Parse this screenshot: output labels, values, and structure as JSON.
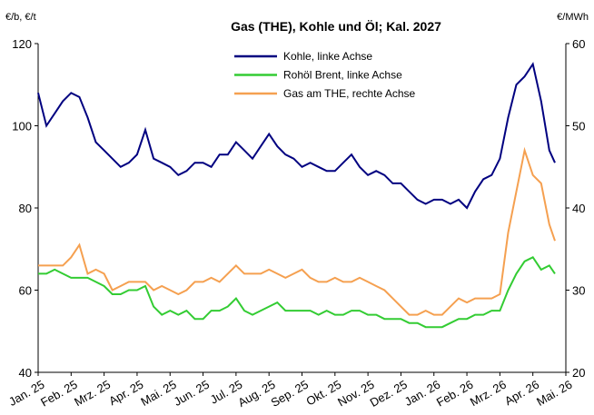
{
  "chart_data": {
    "type": "line",
    "title": "Gas (THE), Kohle und Öl; Kal. 2027",
    "y_label": "€/b, €/t",
    "y2_label": "€/MWh",
    "xlim": [
      0,
      16
    ],
    "xticks": [
      {
        "value": 0,
        "label": "Jan. 25"
      },
      {
        "value": 1,
        "label": "Feb. 25"
      },
      {
        "value": 2,
        "label": "Mrz. 25"
      },
      {
        "value": 3,
        "label": "Apr. 25"
      },
      {
        "value": 4,
        "label": "Mai. 25"
      },
      {
        "value": 5,
        "label": "Jun. 25"
      },
      {
        "value": 6,
        "label": "Jul. 25"
      },
      {
        "value": 7,
        "label": "Aug. 25"
      },
      {
        "value": 8,
        "label": "Sep. 25"
      },
      {
        "value": 9,
        "label": "Okt. 25"
      },
      {
        "value": 10,
        "label": "Nov. 25"
      },
      {
        "value": 11,
        "label": "Dez. 25"
      },
      {
        "value": 12,
        "label": "Jan. 26"
      },
      {
        "value": 13,
        "label": "Feb. 26"
      },
      {
        "value": 14,
        "label": "Mrz. 26"
      },
      {
        "value": 15,
        "label": "Apr. 26"
      },
      {
        "value": 16,
        "label": "Mai. 26"
      }
    ],
    "ylim": [
      40,
      120
    ],
    "yticks": [
      40,
      60,
      80,
      100,
      120
    ],
    "y2lim": [
      20,
      60
    ],
    "y2ticks": [
      20,
      30,
      40,
      50,
      60
    ],
    "grid": false,
    "legend": "top",
    "x": [
      0,
      0.25,
      0.5,
      0.75,
      1,
      1.25,
      1.5,
      1.75,
      2,
      2.25,
      2.5,
      2.75,
      3,
      3.25,
      3.5,
      3.75,
      4,
      4.25,
      4.5,
      4.75,
      5,
      5.25,
      5.5,
      5.75,
      6,
      6.25,
      6.5,
      6.75,
      7,
      7.25,
      7.5,
      7.75,
      8,
      8.25,
      8.5,
      8.75,
      9,
      9.25,
      9.5,
      9.75,
      10,
      10.25,
      10.5,
      10.75,
      11,
      11.25,
      11.5,
      11.75,
      12,
      12.25,
      12.5,
      12.75,
      13,
      13.25,
      13.5,
      13.75,
      14,
      14.25,
      14.5,
      14.75,
      15,
      15.25,
      15.5,
      15.67
    ],
    "series": [
      {
        "name": "Kohle, linke Achse",
        "color": "#000080",
        "axis": "y",
        "values": [
          108,
          100,
          103,
          106,
          108,
          107,
          102,
          96,
          94,
          92,
          90,
          91,
          93,
          99,
          92,
          91,
          90,
          88,
          89,
          91,
          91,
          90,
          93,
          93,
          96,
          94,
          92,
          95,
          98,
          95,
          93,
          92,
          90,
          91,
          90,
          89,
          89,
          91,
          93,
          90,
          88,
          89,
          88,
          86,
          86,
          84,
          82,
          81,
          82,
          82,
          81,
          82,
          80,
          84,
          87,
          88,
          92,
          102,
          110,
          112,
          115,
          106,
          94,
          91
        ]
      },
      {
        "name": "Rohöl Brent, linke Achse",
        "color": "#33cc33",
        "axis": "y",
        "values": [
          64,
          64,
          65,
          64,
          63,
          63,
          63,
          62,
          61,
          59,
          59,
          60,
          60,
          61,
          56,
          54,
          55,
          54,
          55,
          53,
          53,
          55,
          55,
          56,
          58,
          55,
          54,
          55,
          56,
          57,
          55,
          55,
          55,
          55,
          54,
          55,
          54,
          54,
          55,
          55,
          54,
          54,
          53,
          53,
          53,
          52,
          52,
          51,
          51,
          51,
          52,
          53,
          53,
          54,
          54,
          55,
          55,
          60,
          64,
          67,
          68,
          65,
          66,
          64
        ]
      },
      {
        "name": "Gas am THE, rechte Achse",
        "color": "#f5a050",
        "axis": "y2",
        "values": [
          33,
          33,
          33,
          33,
          34,
          35.5,
          32,
          32.5,
          32,
          30,
          30.5,
          31,
          31,
          31,
          30,
          30.5,
          30,
          29.5,
          30,
          31,
          31,
          31.5,
          31,
          32,
          33,
          32,
          32,
          32,
          32.5,
          32,
          31.5,
          32,
          32.5,
          31.5,
          31,
          31,
          31.5,
          31,
          31,
          31.5,
          31,
          30.5,
          30,
          29,
          28,
          27,
          27,
          27.5,
          27,
          27,
          28,
          29,
          28.5,
          29,
          29,
          29,
          29.5,
          37,
          42,
          47,
          44,
          43,
          38,
          36
        ]
      }
    ]
  }
}
